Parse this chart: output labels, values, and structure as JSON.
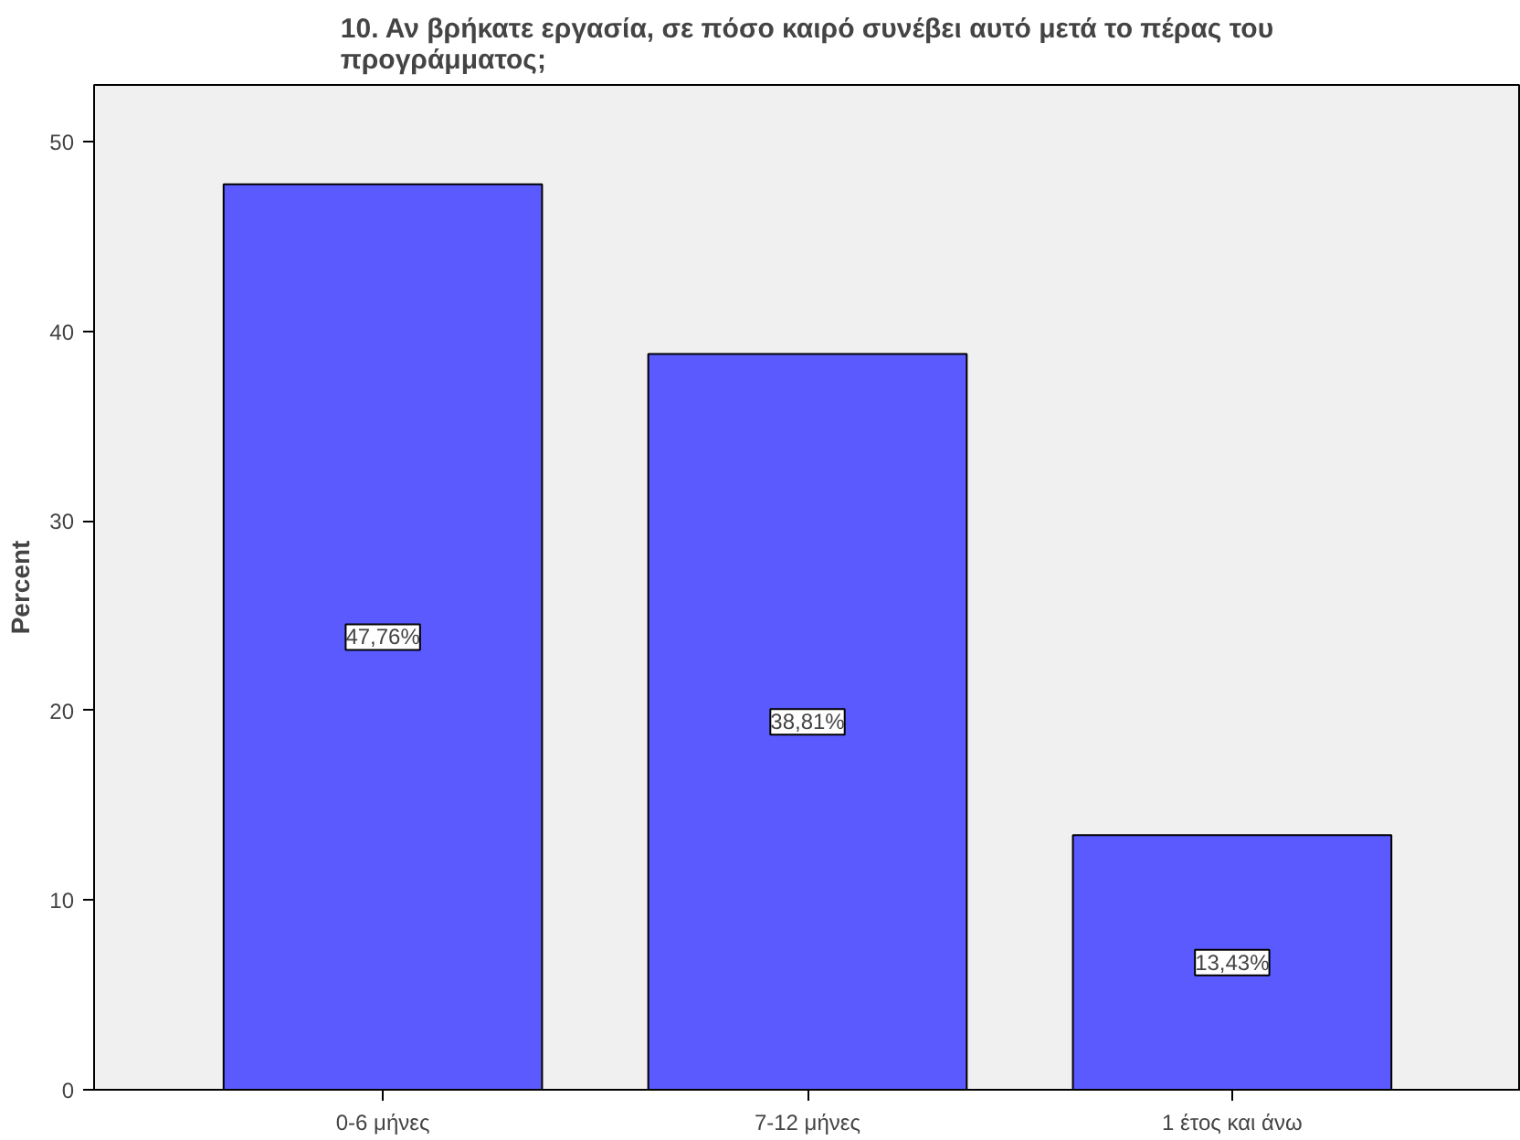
{
  "chart_data": {
    "type": "bar",
    "title": "10. Αν βρήκατε εργασία, σε πόσο καιρό συνέβει αυτό μετά το πέρας του προγράμματος;",
    "ylabel": "Percent",
    "categories": [
      "0-6 μήνες",
      "7-12 μήνες",
      "1 έτος και άνω"
    ],
    "values": [
      47.76,
      38.81,
      13.43
    ],
    "value_labels": [
      "47,76%",
      "38,81%",
      "13,43%"
    ],
    "color": "#5a5aff",
    "ylim": [
      0,
      53
    ],
    "yticks": [
      0,
      10,
      20,
      30,
      40,
      50
    ],
    "grid": false
  }
}
